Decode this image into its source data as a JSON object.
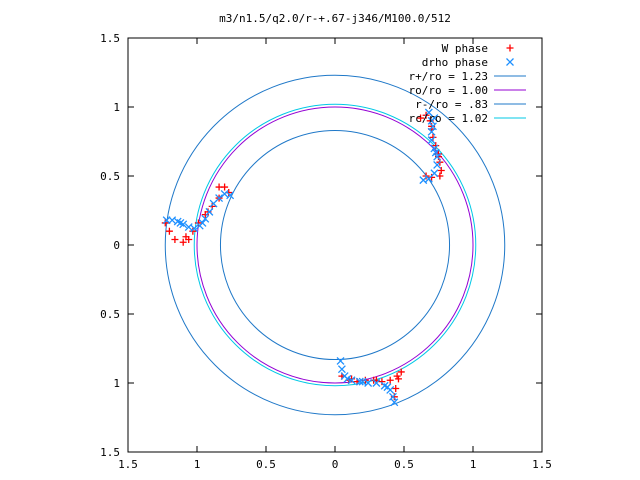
{
  "chart_data": {
    "type": "scatter",
    "title": "m3/n1.5/q2.0/r-+.67-j346/M100.0/512",
    "xlabel": "",
    "ylabel": "",
    "xlim": [
      -1.5,
      1.5
    ],
    "ylim": [
      -1.5,
      1.5
    ],
    "x_ticks": [
      -1.5,
      -1,
      -0.5,
      0,
      0.5,
      1,
      1.5
    ],
    "x_tick_labels": [
      "1.5",
      "1",
      "0.5",
      "0",
      "0.5",
      "1",
      "1.5"
    ],
    "y_ticks": [
      1.5,
      1,
      0.5,
      0,
      -0.5,
      -1,
      -1.5
    ],
    "y_tick_labels": [
      "1.5",
      "1",
      "0.5",
      "0",
      "0.5",
      "1",
      "1.5"
    ],
    "grid": false,
    "legend_position": "top-right",
    "series": [
      {
        "name": "W phase",
        "kind": "points",
        "marker": "+",
        "color": "#ff0000",
        "points": [
          [
            0.62,
            0.92
          ],
          [
            0.66,
            0.94
          ],
          [
            0.69,
            0.9
          ],
          [
            0.7,
            0.84
          ],
          [
            0.71,
            0.78
          ],
          [
            0.73,
            0.72
          ],
          [
            0.75,
            0.66
          ],
          [
            0.76,
            0.6
          ],
          [
            0.77,
            0.54
          ],
          [
            0.76,
            0.5
          ],
          [
            0.7,
            0.49
          ],
          [
            0.66,
            0.5
          ],
          [
            0.75,
            0.64
          ],
          [
            0.7,
            0.86
          ],
          [
            -0.84,
            0.42
          ],
          [
            -0.8,
            0.42
          ],
          [
            -0.77,
            0.38
          ],
          [
            -0.84,
            0.34
          ],
          [
            -0.89,
            0.28
          ],
          [
            -0.94,
            0.22
          ],
          [
            -0.99,
            0.16
          ],
          [
            -1.03,
            0.1
          ],
          [
            -1.06,
            0.04
          ],
          [
            -1.1,
            0.02
          ],
          [
            -1.16,
            0.04
          ],
          [
            -1.2,
            0.1
          ],
          [
            -1.23,
            0.16
          ],
          [
            -1.08,
            0.06
          ],
          [
            -0.92,
            0.24
          ],
          [
            0.05,
            -0.95
          ],
          [
            0.1,
            -0.98
          ],
          [
            0.16,
            -0.99
          ],
          [
            0.22,
            -0.98
          ],
          [
            0.28,
            -0.98
          ],
          [
            0.34,
            -0.99
          ],
          [
            0.4,
            -0.98
          ],
          [
            0.45,
            -0.95
          ],
          [
            0.48,
            -0.92
          ],
          [
            0.46,
            -0.97
          ],
          [
            0.44,
            -1.04
          ],
          [
            0.43,
            -1.1
          ],
          [
            0.3,
            -0.98
          ],
          [
            0.12,
            -0.97
          ]
        ]
      },
      {
        "name": "drho phase",
        "kind": "points",
        "marker": "x",
        "color": "#1e90ff",
        "points": [
          [
            0.68,
            0.96
          ],
          [
            0.7,
            0.9
          ],
          [
            0.7,
            0.82
          ],
          [
            0.7,
            0.76
          ],
          [
            0.72,
            0.7
          ],
          [
            0.74,
            0.64
          ],
          [
            0.74,
            0.58
          ],
          [
            0.72,
            0.52
          ],
          [
            0.68,
            0.48
          ],
          [
            0.64,
            0.47
          ],
          [
            0.72,
            0.92
          ],
          [
            0.71,
            0.86
          ],
          [
            0.73,
            0.67
          ],
          [
            -0.76,
            0.36
          ],
          [
            -0.8,
            0.37
          ],
          [
            -0.84,
            0.34
          ],
          [
            -0.88,
            0.3
          ],
          [
            -0.91,
            0.24
          ],
          [
            -0.94,
            0.19
          ],
          [
            -0.98,
            0.14
          ],
          [
            -1.02,
            0.12
          ],
          [
            -1.06,
            0.13
          ],
          [
            -1.1,
            0.15
          ],
          [
            -1.14,
            0.17
          ],
          [
            -1.18,
            0.18
          ],
          [
            -1.22,
            0.18
          ],
          [
            -0.96,
            0.16
          ],
          [
            -1.12,
            0.16
          ],
          [
            0.04,
            -0.84
          ],
          [
            0.05,
            -0.9
          ],
          [
            0.07,
            -0.95
          ],
          [
            0.12,
            -0.98
          ],
          [
            0.18,
            -0.99
          ],
          [
            0.24,
            -1.0
          ],
          [
            0.3,
            -1.0
          ],
          [
            0.36,
            -1.02
          ],
          [
            0.4,
            -1.05
          ],
          [
            0.42,
            -1.1
          ],
          [
            0.43,
            -1.14
          ],
          [
            0.2,
            -0.99
          ],
          [
            0.38,
            -1.03
          ],
          [
            0.09,
            -0.97
          ]
        ]
      },
      {
        "name": "r+/ro = 1.23",
        "kind": "circle",
        "radius": 1.23,
        "color": "#1f78c8"
      },
      {
        "name": "ro/ro = 1.00",
        "kind": "circle",
        "radius": 1.0,
        "color": "#9400d3"
      },
      {
        "name": "r-/ro = .83",
        "kind": "circle",
        "radius": 0.83,
        "color": "#1f78c8"
      },
      {
        "name": "rc/ro = 1.02",
        "kind": "circle",
        "radius": 1.02,
        "color": "#00c8e6"
      }
    ]
  }
}
